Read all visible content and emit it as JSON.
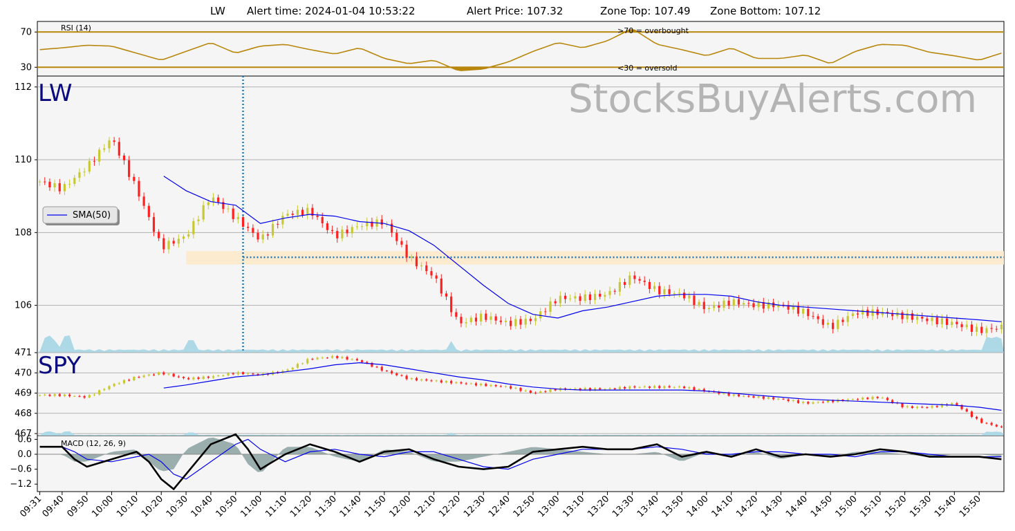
{
  "header": {
    "symbol": "LW",
    "alert_time_label": "Alert time: 2024-01-04 10:53:22",
    "alert_price_label": "Alert Price: 107.32",
    "zone_top_label": "Zone Top: 107.49",
    "zone_bottom_label": "Zone Bottom: 107.12"
  },
  "watermark": "StocksBuyAlerts.com",
  "colors": {
    "panel_bg": "#f5f5f5",
    "rsi_line": "#b8860b",
    "up_candle": "#c8c832",
    "down_candle": "#ff2020",
    "sma": "#0000ee",
    "alert_marker": "#1f77b4",
    "zone_fill": "#fdebd0",
    "volume": "#add8e6",
    "macd_line": "#000000",
    "signal_line": "#0000ee",
    "histogram": "#5f7f7f",
    "symbol_text": "#0b0b80"
  },
  "chart_data": [
    {
      "type": "line",
      "panel": "rsi",
      "label": "RSI (14)",
      "ylim": [
        20,
        82
      ],
      "yticks": [
        "70",
        "30"
      ],
      "ytick_values": [
        70,
        30
      ],
      "overbought": 70,
      "oversold": 30,
      "overbought_label": ">70 = overbought",
      "oversold_label": "<30 = oversold",
      "series": [
        {
          "x": [
            "09:31",
            "09:40",
            "09:50",
            "10:00",
            "10:10",
            "10:20",
            "10:30",
            "10:40",
            "10:50",
            "11:00",
            "11:10",
            "11:20",
            "11:30",
            "11:40",
            "11:50",
            "12:00",
            "12:10",
            "12:20",
            "12:30",
            "12:40",
            "12:50",
            "13:00",
            "13:10",
            "13:20",
            "13:30",
            "13:40",
            "13:50",
            "14:00",
            "14:10",
            "14:20",
            "14:30",
            "14:40",
            "14:50",
            "15:00",
            "15:10",
            "15:20",
            "15:30",
            "15:40",
            "15:50",
            "15:59"
          ],
          "values": [
            50,
            52,
            55,
            54,
            46,
            38,
            48,
            58,
            46,
            54,
            56,
            50,
            45,
            52,
            40,
            34,
            38,
            26,
            28,
            36,
            48,
            58,
            52,
            60,
            74,
            56,
            50,
            43,
            52,
            40,
            40,
            44,
            34,
            48,
            56,
            55,
            47,
            43,
            38,
            46
          ]
        }
      ]
    },
    {
      "type": "candlestick",
      "panel": "price",
      "symbol": "LW",
      "ylim": [
        104.7,
        112.3
      ],
      "yticks": [
        "112",
        "110",
        "108",
        "106"
      ],
      "ytick_values": [
        112,
        110,
        108,
        106
      ],
      "alert_time": "10:53",
      "alert_price": 107.32,
      "zone_top": 107.49,
      "zone_bottom": 107.12,
      "legend": "SMA(50)",
      "series": [
        {
          "name": "close",
          "x": [
            "09:31",
            "09:40",
            "09:50",
            "10:00",
            "10:10",
            "10:20",
            "10:30",
            "10:40",
            "10:50",
            "11:00",
            "11:10",
            "11:20",
            "11:30",
            "11:40",
            "11:50",
            "12:00",
            "12:10",
            "12:20",
            "12:30",
            "12:40",
            "12:50",
            "13:00",
            "13:10",
            "13:20",
            "13:30",
            "13:40",
            "13:50",
            "14:00",
            "14:10",
            "14:20",
            "14:30",
            "14:40",
            "14:50",
            "15:00",
            "15:10",
            "15:20",
            "15:30",
            "15:40",
            "15:50",
            "15:59"
          ],
          "values": [
            109.4,
            109.2,
            109.8,
            110.6,
            109.2,
            107.6,
            107.9,
            109.0,
            108.4,
            107.8,
            108.5,
            108.6,
            107.9,
            108.2,
            108.3,
            107.3,
            106.8,
            105.5,
            105.7,
            105.5,
            105.6,
            106.2,
            106.2,
            106.3,
            106.8,
            106.4,
            106.3,
            105.9,
            106.1,
            106.0,
            106.0,
            105.8,
            105.4,
            105.8,
            105.8,
            105.7,
            105.6,
            105.5,
            105.3,
            105.4
          ]
        },
        {
          "name": "SMA(50)",
          "x": [
            "10:21",
            "10:30",
            "10:40",
            "10:50",
            "11:00",
            "11:10",
            "11:20",
            "11:30",
            "11:40",
            "11:50",
            "12:00",
            "12:10",
            "12:20",
            "12:30",
            "12:40",
            "12:50",
            "13:00",
            "13:10",
            "13:20",
            "13:30",
            "13:40",
            "13:50",
            "14:00",
            "14:10",
            "14:20",
            "14:30",
            "14:40",
            "14:50",
            "15:00",
            "15:10",
            "15:20",
            "15:30",
            "15:40",
            "15:50",
            "15:59"
          ],
          "values": [
            109.55,
            109.15,
            108.85,
            108.75,
            108.25,
            108.4,
            108.5,
            108.45,
            108.3,
            108.25,
            108.05,
            107.65,
            107.1,
            106.55,
            106.05,
            105.75,
            105.65,
            105.85,
            105.95,
            106.1,
            106.25,
            106.3,
            106.3,
            106.25,
            106.1,
            106.0,
            105.95,
            105.9,
            105.85,
            105.8,
            105.75,
            105.7,
            105.65,
            105.6,
            105.55
          ]
        }
      ]
    },
    {
      "type": "candlestick",
      "panel": "spy",
      "symbol": "SPY",
      "ylim": [
        466.9,
        471.0
      ],
      "yticks": [
        "471",
        "470",
        "469",
        "468",
        "467"
      ],
      "ytick_values": [
        471,
        470,
        469,
        468,
        467
      ],
      "series": [
        {
          "name": "close",
          "x": [
            "09:31",
            "09:40",
            "09:50",
            "10:00",
            "10:10",
            "10:20",
            "10:30",
            "10:40",
            "10:50",
            "11:00",
            "11:10",
            "11:20",
            "11:30",
            "11:40",
            "11:50",
            "12:00",
            "12:10",
            "12:20",
            "12:30",
            "12:40",
            "12:50",
            "13:00",
            "13:10",
            "13:20",
            "13:30",
            "13:40",
            "13:50",
            "14:00",
            "14:10",
            "14:20",
            "14:30",
            "14:40",
            "14:50",
            "15:00",
            "15:10",
            "15:20",
            "15:30",
            "15:40",
            "15:50",
            "15:59"
          ],
          "values": [
            468.9,
            468.9,
            468.8,
            469.4,
            469.8,
            470.0,
            469.7,
            469.8,
            470.0,
            469.9,
            470.1,
            470.7,
            470.8,
            470.6,
            470.1,
            469.7,
            469.6,
            469.5,
            469.4,
            469.3,
            469.0,
            469.2,
            469.2,
            469.2,
            469.3,
            469.3,
            469.3,
            469.1,
            468.9,
            468.8,
            468.7,
            468.5,
            468.6,
            468.7,
            468.8,
            468.3,
            468.3,
            468.5,
            467.6,
            467.3
          ]
        },
        {
          "name": "SMA(50)",
          "x": [
            "10:21",
            "10:30",
            "10:40",
            "10:50",
            "11:00",
            "11:10",
            "11:20",
            "11:30",
            "11:40",
            "11:50",
            "12:00",
            "12:10",
            "12:20",
            "12:30",
            "12:40",
            "12:50",
            "13:00",
            "13:10",
            "13:20",
            "13:30",
            "13:40",
            "13:50",
            "14:00",
            "14:10",
            "14:20",
            "14:30",
            "14:40",
            "14:50",
            "15:00",
            "15:10",
            "15:20",
            "15:30",
            "15:40",
            "15:50",
            "15:59"
          ],
          "values": [
            469.25,
            469.4,
            469.6,
            469.8,
            469.9,
            470.05,
            470.2,
            470.4,
            470.5,
            470.4,
            470.2,
            470.0,
            469.8,
            469.65,
            469.45,
            469.3,
            469.2,
            469.15,
            469.15,
            469.15,
            469.15,
            469.15,
            469.1,
            469.0,
            468.9,
            468.8,
            468.7,
            468.65,
            468.6,
            468.55,
            468.5,
            468.45,
            468.4,
            468.3,
            468.15
          ]
        }
      ]
    },
    {
      "type": "line",
      "panel": "macd",
      "label": "MACD (12, 26, 9)",
      "ylim": [
        -1.5,
        0.75
      ],
      "yticks": [
        "0.6",
        "0.0",
        "−0.6",
        "−1.2"
      ],
      "ytick_values": [
        0.6,
        0.0,
        -0.6,
        -1.2
      ],
      "series": [
        {
          "name": "MACD",
          "x": [
            "09:31",
            "09:40",
            "09:45",
            "09:50",
            "10:00",
            "10:10",
            "10:15",
            "10:20",
            "10:25",
            "10:30",
            "10:40",
            "10:50",
            "10:55",
            "11:00",
            "11:10",
            "11:20",
            "11:30",
            "11:40",
            "11:50",
            "12:00",
            "12:10",
            "12:20",
            "12:30",
            "12:40",
            "12:50",
            "13:00",
            "13:10",
            "13:20",
            "13:30",
            "13:40",
            "13:50",
            "14:00",
            "14:10",
            "14:20",
            "14:30",
            "14:40",
            "14:50",
            "15:00",
            "15:10",
            "15:20",
            "15:30",
            "15:40",
            "15:50",
            "15:59"
          ],
          "values": [
            0.3,
            0.3,
            -0.2,
            -0.5,
            -0.2,
            0.1,
            -0.3,
            -1.0,
            -1.4,
            -0.8,
            0.4,
            0.8,
            0.2,
            -0.6,
            0.0,
            0.4,
            0.1,
            -0.3,
            0.1,
            0.2,
            -0.2,
            -0.5,
            -0.6,
            -0.5,
            0.1,
            0.2,
            0.3,
            0.2,
            0.2,
            0.4,
            -0.1,
            0.1,
            -0.1,
            0.2,
            -0.1,
            0.0,
            -0.1,
            0.0,
            0.2,
            0.1,
            -0.1,
            -0.1,
            -0.1,
            -0.2
          ]
        },
        {
          "name": "Signal",
          "x": [
            "09:31",
            "09:40",
            "09:45",
            "09:50",
            "10:00",
            "10:10",
            "10:15",
            "10:20",
            "10:25",
            "10:30",
            "10:40",
            "10:50",
            "10:55",
            "11:00",
            "11:10",
            "11:20",
            "11:30",
            "11:40",
            "11:50",
            "12:00",
            "12:10",
            "12:20",
            "12:30",
            "12:40",
            "12:50",
            "13:00",
            "13:10",
            "13:20",
            "13:30",
            "13:40",
            "13:50",
            "14:00",
            "14:10",
            "14:20",
            "14:30",
            "14:40",
            "14:50",
            "15:00",
            "15:10",
            "15:20",
            "15:30",
            "15:40",
            "15:50",
            "15:59"
          ],
          "values": [
            0.3,
            0.3,
            0.1,
            -0.2,
            -0.3,
            -0.1,
            0.0,
            -0.3,
            -0.8,
            -1.0,
            -0.3,
            0.4,
            0.6,
            0.2,
            -0.3,
            0.1,
            0.2,
            0.0,
            -0.1,
            0.1,
            0.1,
            -0.2,
            -0.5,
            -0.6,
            -0.2,
            0.0,
            0.2,
            0.2,
            0.2,
            0.3,
            0.2,
            0.0,
            0.0,
            0.1,
            0.1,
            0.0,
            0.0,
            -0.1,
            0.1,
            0.1,
            0.0,
            -0.1,
            -0.1,
            -0.1
          ]
        }
      ]
    }
  ],
  "x_axis": {
    "ticks": [
      "09:31",
      "09:40",
      "09:50",
      "10:00",
      "10:10",
      "10:20",
      "10:30",
      "10:40",
      "10:50",
      "11:00",
      "11:10",
      "11:20",
      "11:30",
      "11:40",
      "11:50",
      "12:00",
      "12:10",
      "12:20",
      "12:30",
      "12:40",
      "12:50",
      "13:00",
      "13:10",
      "13:20",
      "13:30",
      "13:40",
      "13:50",
      "14:00",
      "14:10",
      "14:20",
      "14:30",
      "14:40",
      "14:50",
      "15:00",
      "15:10",
      "15:20",
      "15:30",
      "15:40",
      "15:50"
    ]
  }
}
